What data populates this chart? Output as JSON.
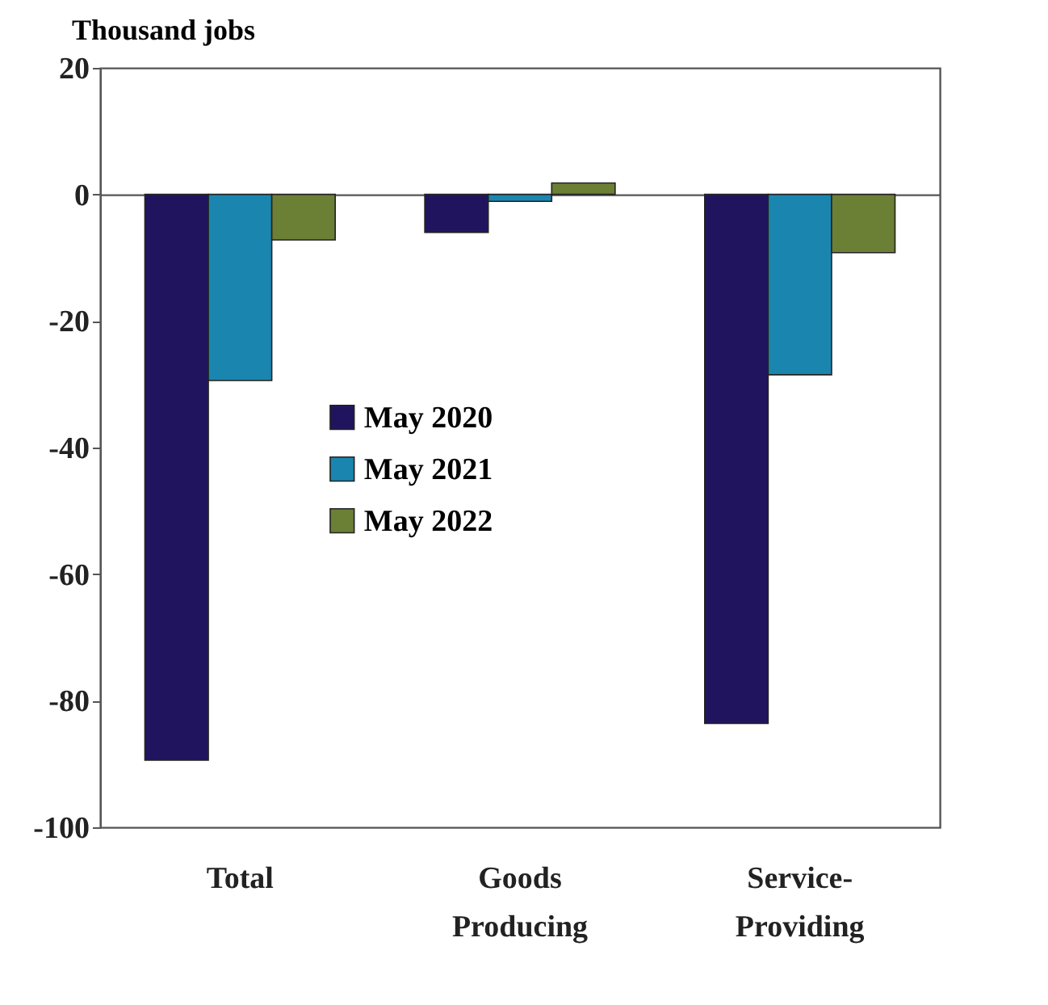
{
  "chart_data": {
    "type": "bar",
    "ylabel": "Thousand jobs",
    "categories": [
      "Total",
      "Goods Producing",
      "Service-Providing"
    ],
    "series": [
      {
        "name": "May 2020",
        "color": "#21145f",
        "values": [
          -89.4,
          -6.0,
          -83.6
        ]
      },
      {
        "name": "May 2021",
        "color": "#1a86b0",
        "values": [
          -29.4,
          -1.1,
          -28.5
        ]
      },
      {
        "name": "May 2022",
        "color": "#6b7f35",
        "values": [
          -7.2,
          1.8,
          -9.2
        ]
      }
    ],
    "ylim": [
      -100,
      20
    ],
    "yticks": [
      -100,
      -80,
      -60,
      -40,
      -20,
      0,
      20
    ],
    "legend": "center"
  }
}
